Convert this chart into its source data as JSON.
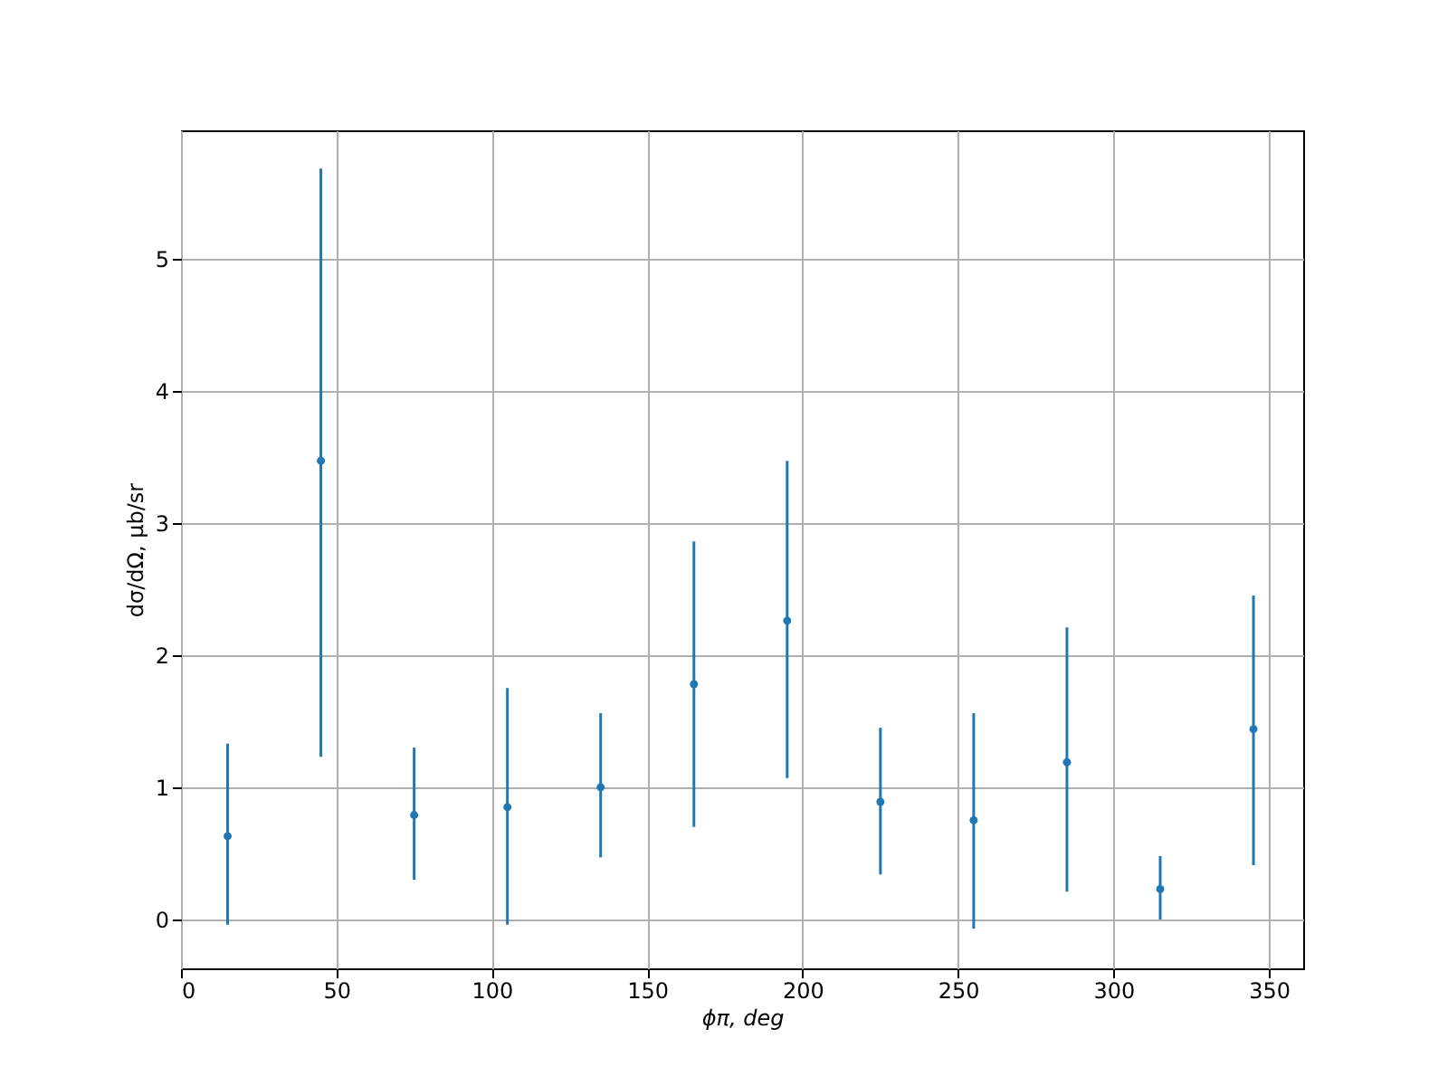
{
  "chart_data": {
    "type": "scatter",
    "xlabel": "ϕπ, deg",
    "ylabel": "dσ/dΩ, μb/sr",
    "x": [
      15,
      45,
      75,
      105,
      135,
      165,
      195,
      225,
      255,
      285,
      315,
      345
    ],
    "series": [
      {
        "color": "#1f77b4",
        "values": [
          0.63,
          3.47,
          0.79,
          0.85,
          1.0,
          1.78,
          2.26,
          0.89,
          0.75,
          1.19,
          0.23,
          1.44
        ],
        "errors": [
          [
            -0.04,
            1.33
          ],
          [
            1.23,
            5.68
          ],
          [
            0.3,
            1.3
          ],
          [
            -0.04,
            1.75
          ],
          [
            0.47,
            1.56
          ],
          [
            0.7,
            2.86
          ],
          [
            1.07,
            3.47
          ],
          [
            0.34,
            1.45
          ],
          [
            -0.07,
            1.56
          ],
          [
            0.21,
            2.21
          ],
          [
            0.0,
            0.48
          ],
          [
            0.41,
            2.45
          ]
        ]
      }
    ],
    "xlim": [
      0,
      361
    ],
    "ylim": [
      -0.37,
      5.97
    ],
    "xticks": [
      0,
      50,
      100,
      150,
      200,
      250,
      300,
      350
    ],
    "yticks": [
      0,
      1,
      2,
      3,
      4,
      5
    ],
    "grid": true,
    "marker": "circle"
  }
}
